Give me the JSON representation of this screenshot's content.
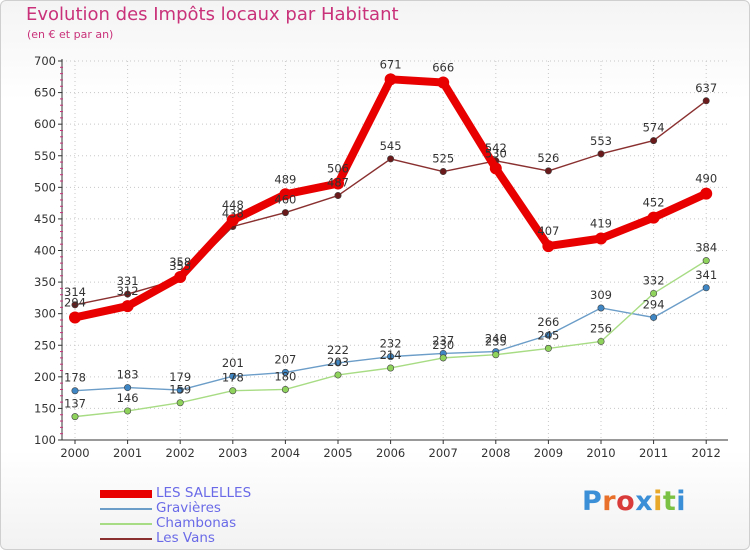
{
  "title": "Evolution des Impôts locaux par Habitant",
  "subtitle": "(en € et par an)",
  "logo_text": "Proxiti",
  "logo_letters": [
    {
      "ch": "P",
      "color": "#3b8fd6"
    },
    {
      "ch": "r",
      "color": "#e8702a"
    },
    {
      "ch": "o",
      "color": "#d93b3b"
    },
    {
      "ch": "x",
      "color": "#3b8fd6"
    },
    {
      "ch": "i",
      "color": "#e8a92a"
    },
    {
      "ch": "t",
      "color": "#7bc143"
    },
    {
      "ch": "i",
      "color": "#3b8fd6"
    }
  ],
  "chart_data": {
    "type": "line",
    "title": "Evolution des Impôts locaux par Habitant",
    "ylabel": "(en € et par an)",
    "xlabel": "",
    "categories": [
      "2000",
      "2001",
      "2002",
      "2003",
      "2004",
      "2005",
      "2006",
      "2007",
      "2008",
      "2009",
      "2010",
      "2011",
      "2012"
    ],
    "ylim": [
      100,
      700
    ],
    "yticks": [
      100,
      150,
      200,
      250,
      300,
      350,
      400,
      450,
      500,
      550,
      600,
      650,
      700
    ],
    "grid": true,
    "legend_position": "bottom-left",
    "series": [
      {
        "name": "LES SALELLES",
        "color": "#e80000",
        "width": 8,
        "values": [
          294,
          312,
          358,
          448,
          489,
          506,
          671,
          666,
          530,
          407,
          419,
          452,
          490
        ],
        "labels": [
          "294",
          "312",
          "358",
          "448",
          "489",
          "506",
          "671",
          "666",
          "530",
          "407",
          "419",
          "452",
          "490"
        ]
      },
      {
        "name": "Gravières",
        "color": "#6b9dc8",
        "width": 1.4,
        "values": [
          178,
          183,
          179,
          201,
          207,
          222,
          232,
          237,
          240,
          266,
          309,
          294,
          341
        ],
        "labels": [
          "178",
          "183",
          "179",
          "201",
          "207",
          "222",
          "232",
          "237",
          "240",
          "266",
          "309",
          "294",
          "341"
        ]
      },
      {
        "name": "Chambonas",
        "color": "#a8dc84",
        "width": 1.4,
        "values": [
          137,
          146,
          159,
          178,
          180,
          203,
          214,
          230,
          235,
          245,
          256,
          332,
          384
        ],
        "labels": [
          "137",
          "146",
          "159",
          "178",
          "180",
          "203",
          "214",
          "230",
          "235",
          "245",
          "256",
          "332",
          "384"
        ]
      },
      {
        "name": "Les Vans",
        "color": "#8a3030",
        "width": 1.4,
        "values": [
          314,
          331,
          355,
          438,
          460,
          487,
          545,
          525,
          542,
          526,
          553,
          574,
          637
        ],
        "labels": [
          "314",
          "331",
          "355",
          "438",
          "460",
          "487",
          "545",
          "525",
          "542",
          "526",
          "553",
          "574",
          "637"
        ]
      }
    ]
  }
}
